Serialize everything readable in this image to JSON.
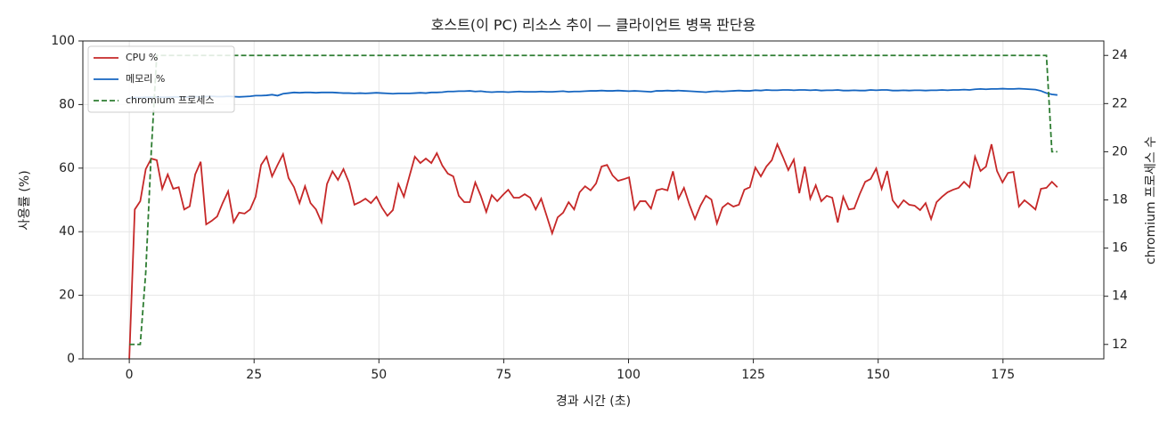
{
  "chart_data": {
    "type": "line",
    "title": "호스트(이 PC) 리소스 추이 — 클라이언트 병목 판단용",
    "xlabel": "경과 시간 (초)",
    "ylabel": "사용률 (%)",
    "y2label": "chromium 프로세스 수",
    "x": [
      0,
      1.1,
      2.2,
      3.3,
      4.4,
      5.5,
      6.6,
      7.7,
      8.8,
      9.9,
      11,
      12.1,
      13.2,
      14.3,
      15.4,
      16.5,
      17.6,
      18.7,
      19.8,
      20.9,
      22,
      23.1,
      24.2,
      25.3,
      26.4,
      27.5,
      28.6,
      29.7,
      30.8,
      31.9,
      33,
      34.1,
      35.2,
      36.3,
      37.4,
      38.5,
      39.6,
      40.7,
      41.8,
      42.9,
      44,
      45.1,
      46.2,
      47.3,
      48.4,
      49.5,
      50.6,
      51.7,
      52.8,
      53.9,
      55,
      56.1,
      57.2,
      58.3,
      59.4,
      60.5,
      61.6,
      62.7,
      63.8,
      64.9,
      66,
      67.1,
      68.2,
      69.3,
      70.4,
      71.5,
      72.6,
      73.7,
      74.8,
      75.9,
      77,
      78.1,
      79.2,
      80.3,
      81.4,
      82.5,
      83.6,
      84.7,
      85.8,
      86.9,
      88,
      89.1,
      90.2,
      91.3,
      92.4,
      93.5,
      94.6,
      95.7,
      96.8,
      97.9,
      99,
      100.1,
      101.2,
      102.3,
      103.4,
      104.5,
      105.6,
      106.7,
      107.8,
      108.9,
      110,
      111.1,
      112.2,
      113.3,
      114.4,
      115.5,
      116.6,
      117.7,
      118.8,
      119.9,
      121,
      122.1,
      123.2,
      124.3,
      125.4,
      126.5,
      127.6,
      128.7,
      129.8,
      130.9,
      132,
      133.1,
      134.2,
      135.3,
      136.4,
      137.5,
      138.6,
      139.7,
      140.8,
      141.9,
      143,
      144.1,
      145.2,
      146.3,
      147.4,
      148.5,
      149.6,
      150.7,
      151.8,
      152.9,
      154,
      155.1,
      156.2,
      157.3,
      158.4,
      159.5,
      160.6,
      161.7,
      162.8,
      163.9,
      165,
      166.1,
      167.2,
      168.3,
      169.4,
      170.5,
      171.6,
      172.7,
      173.8,
      174.9,
      176,
      177.1,
      178.2,
      179.3,
      180.4,
      181.5,
      182.6,
      183.7,
      184.8,
      185.9
    ],
    "series": [
      {
        "name": "CPU %",
        "color": "#c62828",
        "linestyle": "solid",
        "values": [
          0,
          47,
          49.6,
          59.7,
          63,
          62.5,
          53.5,
          58,
          53.5,
          54,
          47,
          48,
          58,
          62,
          42.3,
          43.4,
          44.8,
          49,
          52.7,
          43,
          46,
          45.7,
          47,
          51,
          61,
          63.6,
          57.4,
          61,
          64.4,
          56.9,
          54,
          49,
          54.3,
          49,
          47,
          43,
          55,
          59,
          56.3,
          59.7,
          55.5,
          48.5,
          49.3,
          50.4,
          49,
          51,
          47.6,
          45,
          46.8,
          55,
          51,
          57.4,
          63.6,
          61.6,
          63,
          61.6,
          64.7,
          60.8,
          58.3,
          57.4,
          51.3,
          49.3,
          49.3,
          55.5,
          51.3,
          46.2,
          51.5,
          49.6,
          51.5,
          53.2,
          50.7,
          50.7,
          51.8,
          50.7,
          47,
          50.4,
          45,
          39.5,
          44.5,
          46,
          49.3,
          47,
          52.4,
          54.3,
          53,
          55.2,
          60.5,
          61,
          57.7,
          56,
          56.5,
          57.1,
          47,
          49.6,
          49.6,
          47.3,
          53,
          53.5,
          53,
          59,
          50.4,
          53.8,
          48.5,
          44,
          48.2,
          51.3,
          50.1,
          42.6,
          47.6,
          49,
          47.9,
          48.5,
          53.2,
          54,
          60.2,
          57.4,
          60.5,
          62.5,
          67.5,
          63.6,
          59.4,
          62.7,
          52.1,
          60.5,
          50.4,
          54.6,
          49.6,
          51.3,
          50.7,
          42.9,
          51,
          47,
          47.3,
          51.8,
          55.7,
          56.6,
          59.9,
          53.5,
          59.1,
          49.9,
          47.6,
          49.9,
          48.5,
          48.2,
          46.8,
          49,
          44,
          49.3,
          51,
          52.4,
          53.2,
          53.8,
          55.7,
          54,
          63.6,
          59.1,
          60.5,
          67.5,
          59.1,
          55.5,
          58.5,
          58.8,
          47.9,
          49.9,
          48.5,
          47,
          53.5,
          53.8,
          55.7,
          54
        ]
      },
      {
        "name": "메모리 %",
        "color": "#1565c0",
        "linestyle": "solid",
        "values": [
          82.1,
          82.2,
          82.2,
          82.3,
          82.3,
          82.4,
          82.3,
          82.3,
          82.4,
          82.4,
          82.3,
          82.4,
          82.5,
          82.4,
          82.5,
          82.6,
          82.5,
          82.5,
          82.6,
          82.5,
          82.4,
          82.5,
          82.6,
          82.8,
          82.8,
          82.9,
          83.1,
          82.8,
          83.4,
          83.6,
          83.8,
          83.7,
          83.8,
          83.8,
          83.7,
          83.8,
          83.8,
          83.8,
          83.7,
          83.6,
          83.6,
          83.5,
          83.6,
          83.5,
          83.6,
          83.7,
          83.6,
          83.5,
          83.4,
          83.5,
          83.5,
          83.5,
          83.6,
          83.7,
          83.6,
          83.8,
          83.8,
          83.9,
          84.1,
          84.1,
          84.2,
          84.2,
          84.3,
          84.1,
          84.2,
          84.0,
          83.9,
          84.0,
          84.0,
          83.9,
          84.0,
          84.1,
          84.0,
          84.0,
          84.0,
          84.1,
          84.0,
          84.0,
          84.1,
          84.2,
          84.0,
          84.1,
          84.1,
          84.2,
          84.3,
          84.3,
          84.4,
          84.3,
          84.3,
          84.4,
          84.3,
          84.2,
          84.3,
          84.2,
          84.1,
          84.0,
          84.3,
          84.3,
          84.4,
          84.3,
          84.4,
          84.3,
          84.2,
          84.1,
          84.0,
          83.9,
          84.1,
          84.2,
          84.1,
          84.2,
          84.3,
          84.4,
          84.3,
          84.3,
          84.5,
          84.4,
          84.6,
          84.5,
          84.5,
          84.6,
          84.6,
          84.5,
          84.6,
          84.6,
          84.5,
          84.6,
          84.4,
          84.5,
          84.5,
          84.6,
          84.4,
          84.4,
          84.5,
          84.4,
          84.4,
          84.6,
          84.5,
          84.6,
          84.6,
          84.4,
          84.4,
          84.5,
          84.4,
          84.5,
          84.5,
          84.4,
          84.5,
          84.5,
          84.6,
          84.5,
          84.6,
          84.6,
          84.7,
          84.6,
          84.8,
          84.9,
          84.8,
          84.9,
          84.9,
          85.0,
          84.9,
          84.9,
          85.0,
          84.9,
          84.8,
          84.7,
          84.3,
          83.6,
          83.2,
          83.0
        ]
      },
      {
        "name": "chromium 프로세스",
        "color": "#2e7d32",
        "linestyle": "dashed",
        "axis": "y2",
        "values": [
          12,
          12,
          12,
          15,
          20,
          24,
          24,
          24,
          24,
          24,
          24,
          24,
          24,
          24,
          24,
          24,
          24,
          24,
          24,
          24,
          24,
          24,
          24,
          24,
          24,
          24,
          24,
          24,
          24,
          24,
          24,
          24,
          24,
          24,
          24,
          24,
          24,
          24,
          24,
          24,
          24,
          24,
          24,
          24,
          24,
          24,
          24,
          24,
          24,
          24,
          24,
          24,
          24,
          24,
          24,
          24,
          24,
          24,
          24,
          24,
          24,
          24,
          24,
          24,
          24,
          24,
          24,
          24,
          24,
          24,
          24,
          24,
          24,
          24,
          24,
          24,
          24,
          24,
          24,
          24,
          24,
          24,
          24,
          24,
          24,
          24,
          24,
          24,
          24,
          24,
          24,
          24,
          24,
          24,
          24,
          24,
          24,
          24,
          24,
          24,
          24,
          24,
          24,
          24,
          24,
          24,
          24,
          24,
          24,
          24,
          24,
          24,
          24,
          24,
          24,
          24,
          24,
          24,
          24,
          24,
          24,
          24,
          24,
          24,
          24,
          24,
          24,
          24,
          24,
          24,
          24,
          24,
          24,
          24,
          24,
          24,
          24,
          24,
          24,
          24,
          24,
          24,
          24,
          24,
          24,
          24,
          24,
          24,
          24,
          24,
          24,
          24,
          24,
          24,
          24,
          24,
          24,
          24,
          24,
          24,
          24,
          24,
          24,
          24,
          24,
          24,
          24,
          24,
          20,
          20
        ]
      }
    ],
    "xlim": [
      -9.3,
      195.2
    ],
    "xticks": [
      0,
      25,
      50,
      75,
      100,
      125,
      150,
      175
    ],
    "ylim": [
      0,
      100
    ],
    "yticks": [
      0,
      20,
      40,
      60,
      80,
      100
    ],
    "y2lim": [
      11.4,
      24.6
    ],
    "y2ticks": [
      12,
      14,
      16,
      18,
      20,
      22,
      24
    ],
    "grid": true,
    "legend": "upper-left"
  }
}
